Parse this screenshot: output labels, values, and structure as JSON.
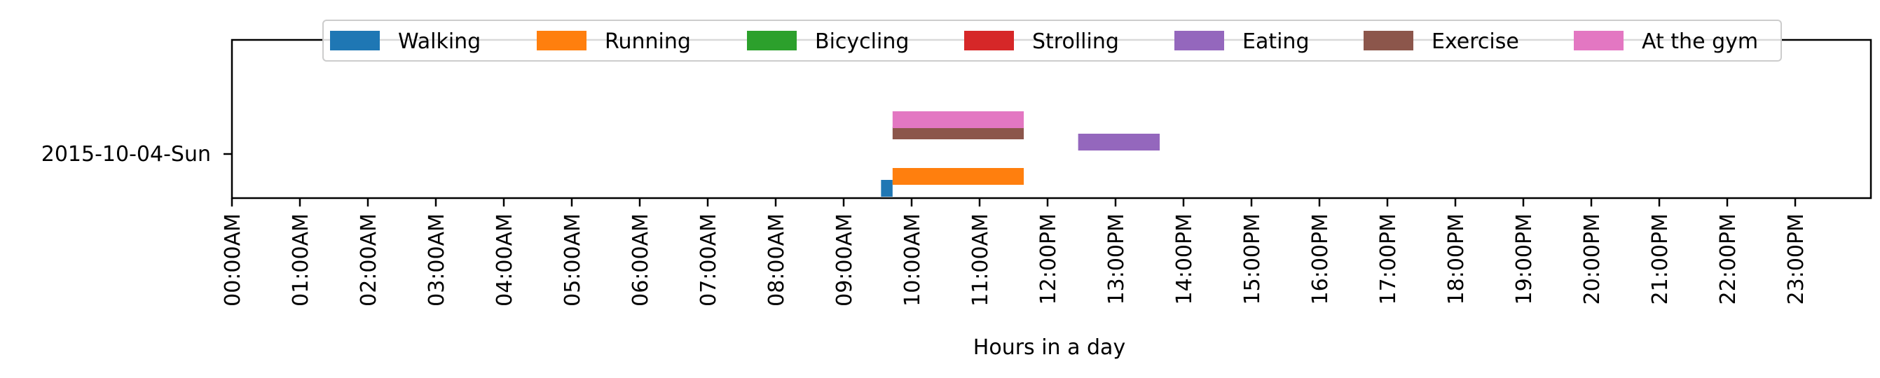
{
  "chart_data": {
    "type": "bar",
    "orientation": "horizontal",
    "xlabel": "Hours in a day",
    "ylabel": "",
    "xlim": [
      0,
      24
    ],
    "x_tick_values": [
      0,
      1,
      2,
      3,
      4,
      5,
      6,
      7,
      8,
      9,
      10,
      11,
      12,
      13,
      14,
      15,
      16,
      17,
      18,
      19,
      20,
      21,
      22,
      23
    ],
    "x_tick_labels": [
      "00:00AM",
      "01:00AM",
      "02:00AM",
      "03:00AM",
      "04:00AM",
      "05:00AM",
      "06:00AM",
      "07:00AM",
      "08:00AM",
      "09:00AM",
      "10:00AM",
      "11:00AM",
      "12:00PM",
      "13:00PM",
      "14:00PM",
      "15:00PM",
      "16:00PM",
      "17:00PM",
      "18:00PM",
      "19:00PM",
      "20:00PM",
      "21:00PM",
      "22:00PM",
      "23:00PM"
    ],
    "categories": [
      "2015-10-04-Sun"
    ],
    "legend_position": "top",
    "grid": false,
    "series": [
      {
        "name": "Walking",
        "color": "#1f77b4",
        "intervals": [
          {
            "start": 9.55,
            "end": 9.72
          }
        ]
      },
      {
        "name": "Running",
        "color": "#ff7f0e",
        "intervals": [
          {
            "start": 9.72,
            "end": 11.65
          }
        ]
      },
      {
        "name": "Bicycling",
        "color": "#2ca02c",
        "intervals": []
      },
      {
        "name": "Strolling",
        "color": "#d62728",
        "intervals": []
      },
      {
        "name": "Eating",
        "color": "#9467bd",
        "intervals": [
          {
            "start": 12.45,
            "end": 13.65
          }
        ]
      },
      {
        "name": "Exercise",
        "color": "#8c564b",
        "intervals": [
          {
            "start": 9.72,
            "end": 11.65
          }
        ]
      },
      {
        "name": "At the gym",
        "color": "#e377c2",
        "intervals": [
          {
            "start": 9.72,
            "end": 11.65
          }
        ]
      }
    ]
  }
}
